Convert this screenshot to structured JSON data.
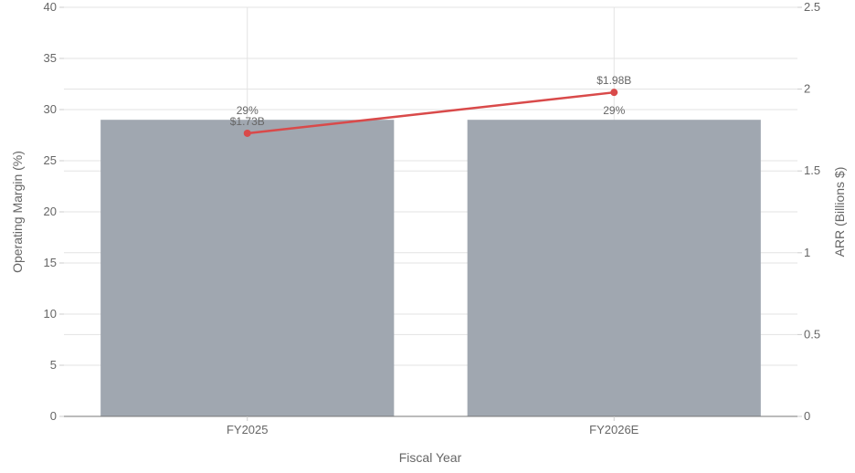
{
  "chart_data": {
    "type": "bar",
    "categories": [
      "FY2025",
      "FY2026E"
    ],
    "xlabel": "Fiscal Year",
    "ylabel": "Operating Margin (%)",
    "y2label": "ARR (Billions $)",
    "ylim": [
      0,
      40
    ],
    "y2lim": [
      0,
      2.5
    ],
    "yticks": [
      "0",
      "5",
      "10",
      "15",
      "20",
      "25",
      "30",
      "35",
      "40"
    ],
    "y2ticks": [
      "0",
      "0.5",
      "1",
      "1.5",
      "2",
      "2.5"
    ],
    "grid": true,
    "series": [
      {
        "type": "bar",
        "axis": "left",
        "values": [
          29,
          29
        ],
        "labels": [
          "29%",
          "29%"
        ],
        "color": "#a0a7b0"
      },
      {
        "type": "line",
        "axis": "right",
        "values": [
          1.73,
          1.98
        ],
        "labels": [
          "$1.73B",
          "$1.98B"
        ],
        "color": "#d94a4a"
      }
    ]
  }
}
